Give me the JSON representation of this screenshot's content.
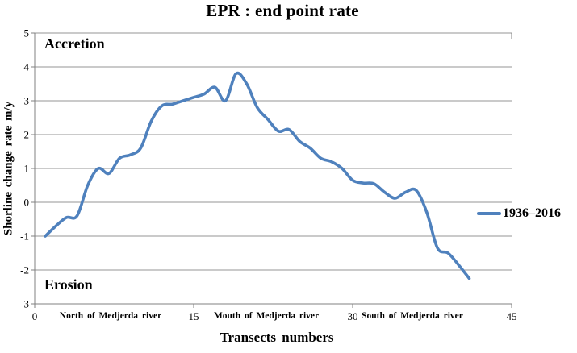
{
  "title": "EPR : end point rate",
  "annotations": {
    "accretion": "Accretion",
    "erosion": "Erosion"
  },
  "legend": {
    "label": "1936–2016"
  },
  "y_axis": {
    "title": "Shorline change rate m/y",
    "ticks": [
      5,
      4,
      3,
      2,
      1,
      0,
      -1,
      -2,
      -3
    ]
  },
  "x_axis": {
    "title": "Transects numbers",
    "ticks": [
      0,
      15,
      30,
      45
    ],
    "region_labels": [
      "North of Medjerda river",
      "Mouth of Medjerda river",
      "South of Medjerda river"
    ]
  },
  "colors": {
    "line": "#4F81BD",
    "gridline": "#969696",
    "axis": "#808080",
    "text": "#000000"
  },
  "chart_data": {
    "type": "line",
    "title": "EPR : end point rate",
    "xlabel": "Transects numbers",
    "ylabel": "Shorline change rate m/y",
    "xlim": [
      0,
      45
    ],
    "ylim": [
      -3,
      5
    ],
    "grid": "horizontal",
    "legend_position": "right",
    "series": [
      {
        "name": "1936–2016",
        "x": [
          1,
          2,
          3,
          4,
          5,
          6,
          7,
          8,
          9,
          10,
          11,
          12,
          13,
          14,
          15,
          16,
          17,
          18,
          19,
          20,
          21,
          22,
          23,
          24,
          25,
          26,
          27,
          28,
          29,
          30,
          31,
          32,
          33,
          34,
          35,
          36,
          37,
          38,
          39,
          40,
          41
        ],
        "y": [
          -1.0,
          -0.7,
          -0.45,
          -0.4,
          0.5,
          1.0,
          0.85,
          1.3,
          1.4,
          1.6,
          2.4,
          2.85,
          2.9,
          3.0,
          3.1,
          3.2,
          3.4,
          3.0,
          3.8,
          3.5,
          2.8,
          2.45,
          2.1,
          2.15,
          1.8,
          1.6,
          1.3,
          1.2,
          1.0,
          0.65,
          0.57,
          0.55,
          0.3,
          0.12,
          0.3,
          0.35,
          -0.3,
          -1.35,
          -1.5,
          -1.85,
          -2.25
        ]
      }
    ]
  }
}
